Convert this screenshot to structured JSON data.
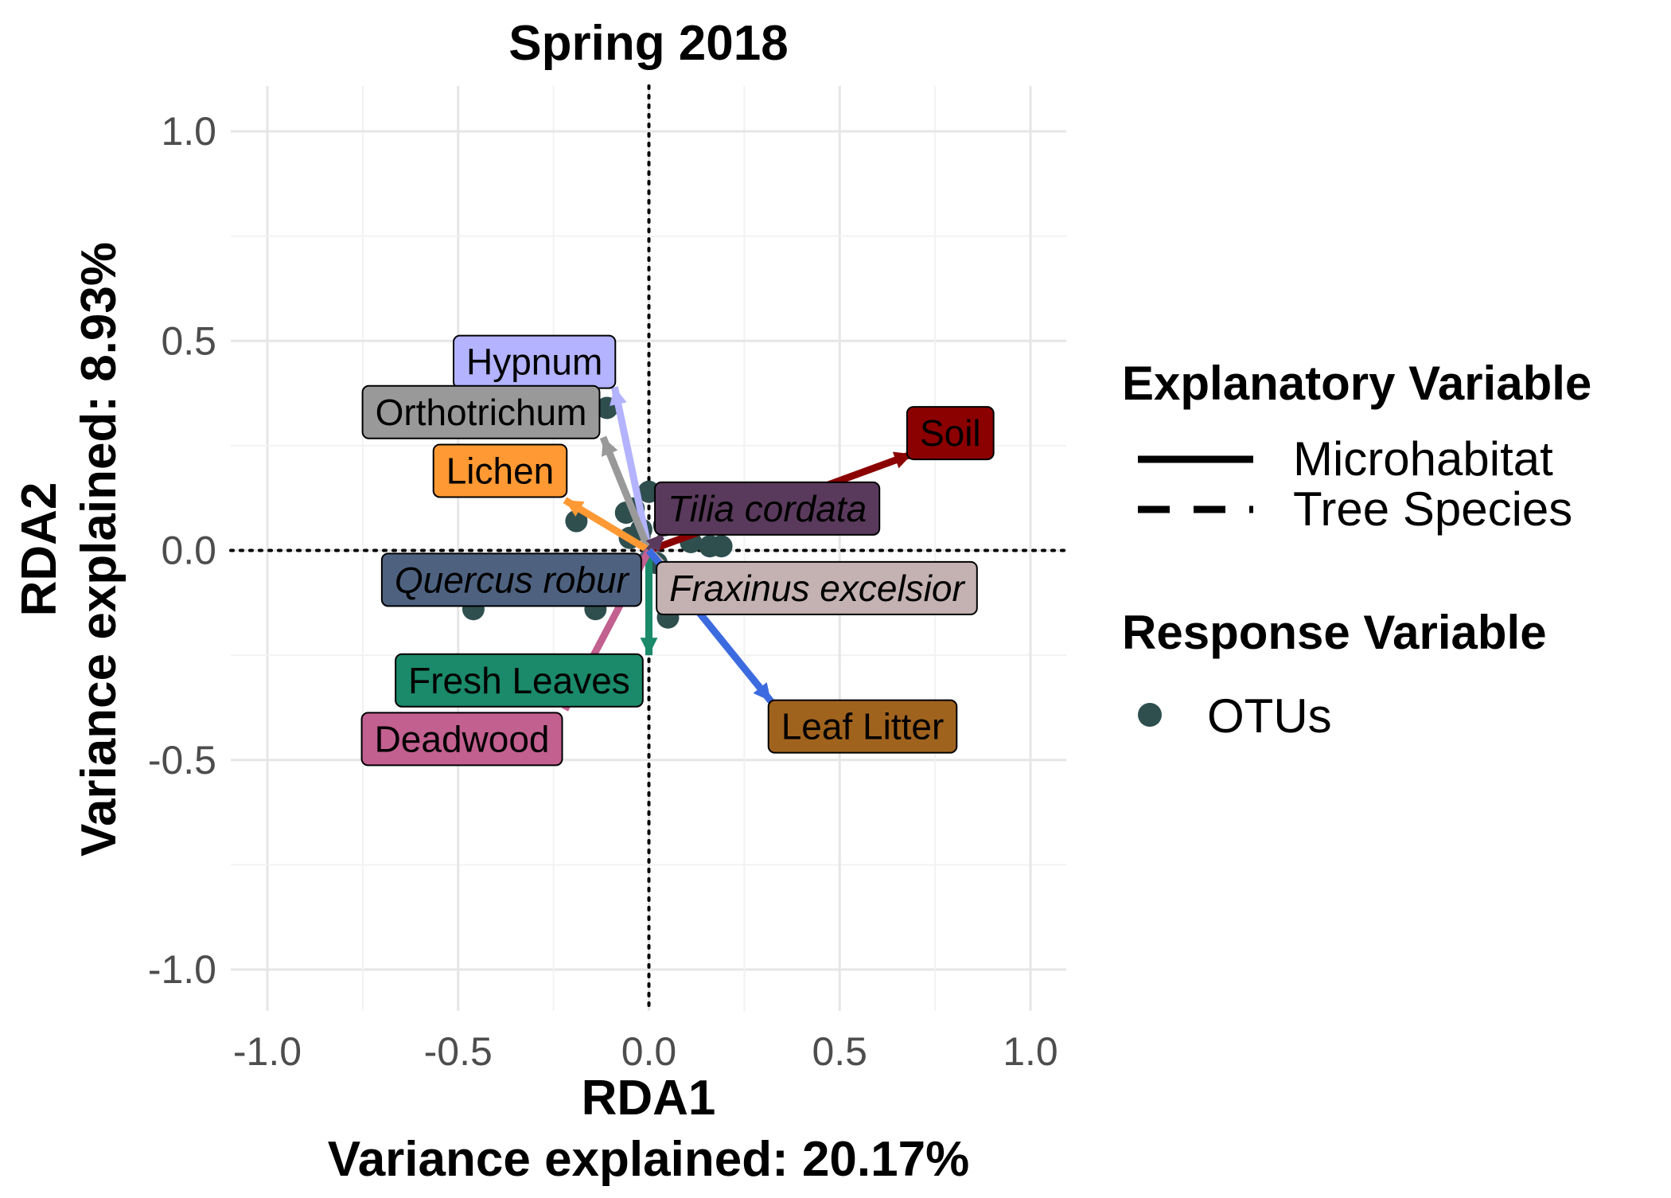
{
  "chart_data": {
    "type": "scatter",
    "title": "Spring 2018",
    "xlabel": "RDA1",
    "xlabel_sub": "Variance explained: 20.17%",
    "ylabel": "RDA2",
    "ylabel_sub": "Variance explained: 8.93%",
    "xlim": [
      -1.1,
      1.1
    ],
    "ylim": [
      -1.1,
      1.1
    ],
    "x_ticks": [
      -1.0,
      -0.5,
      0.0,
      0.5,
      1.0
    ],
    "y_ticks": [
      -1.0,
      -0.5,
      0.0,
      0.5,
      1.0
    ],
    "x_tick_labels": [
      "-1.0",
      "-0.5",
      "0.0",
      "0.5",
      "1.0"
    ],
    "y_tick_labels": [
      "-1.0",
      "-0.5",
      "0.0",
      "0.5",
      "1.0"
    ],
    "grid": true,
    "reference_lines": {
      "x": 0,
      "y": 0,
      "style": "dotted"
    },
    "legend": {
      "position": "right",
      "explanatory_title": "Explanatory Variable",
      "explanatory_items": [
        {
          "label": "Microhabitat",
          "linetype": "solid"
        },
        {
          "label": "Tree Species",
          "linetype": "dashed"
        }
      ],
      "response_title": "Response Variable",
      "response_items": [
        {
          "label": "OTUs",
          "color": "#2f4f4f"
        }
      ]
    },
    "arrows": [
      {
        "label": "Soil",
        "x": 0.69,
        "y": 0.23,
        "type": "Microhabitat",
        "color": "#8b0000",
        "text_color": "#000000",
        "label_x": 0.79,
        "label_y": 0.28
      },
      {
        "label": "Hypnum",
        "x": -0.09,
        "y": 0.39,
        "type": "Microhabitat",
        "color": "#b3b3ff",
        "text_color": "#000000",
        "label_x": -0.3,
        "label_y": 0.45
      },
      {
        "label": "Orthotrichum",
        "x": -0.12,
        "y": 0.27,
        "type": "Microhabitat",
        "color": "#999999",
        "text_color": "#000000",
        "label_x": -0.44,
        "label_y": 0.33
      },
      {
        "label": "Lichen",
        "x": -0.22,
        "y": 0.12,
        "type": "Microhabitat",
        "color": "#ff9933",
        "text_color": "#000000",
        "label_x": -0.39,
        "label_y": 0.19
      },
      {
        "label": "Tilia cordata",
        "x": 0.04,
        "y": 0.04,
        "type": "Tree Species",
        "color": "#5a3a5c",
        "text_color": "#000000",
        "label_x": 0.31,
        "label_y": 0.1
      },
      {
        "label": "Quercus robur",
        "x": -0.13,
        "y": -0.11,
        "type": "Tree Species",
        "color": "#4e6280",
        "text_color": "#000000",
        "label_x": -0.36,
        "label_y": -0.07
      },
      {
        "label": "Fraxinus excelsior",
        "x": 0.13,
        "y": -0.12,
        "type": "Tree Species",
        "color": "#c4b2b2",
        "text_color": "#000000",
        "label_x": 0.44,
        "label_y": -0.09
      },
      {
        "label": "Fresh Leaves",
        "x": 0.0,
        "y": -0.25,
        "type": "Microhabitat",
        "color": "#1a8a6a",
        "text_color": "#000000",
        "label_x": -0.34,
        "label_y": -0.31
      },
      {
        "label": "Deadwood",
        "x": -0.22,
        "y": -0.38,
        "type": "Microhabitat",
        "color": "#c26090",
        "text_color": "#000000",
        "label_x": -0.49,
        "label_y": -0.45
      },
      {
        "label": "Leaf Litter",
        "x": 0.32,
        "y": -0.36,
        "type": "Microhabitat",
        "color": "#3c6be0",
        "text_color": "#000000",
        "label_x": 0.56,
        "label_y": -0.42,
        "label_fill": "#a0631e"
      }
    ],
    "points": [
      {
        "x": -0.11,
        "y": 0.34
      },
      {
        "x": -0.19,
        "y": 0.07
      },
      {
        "x": -0.06,
        "y": 0.09
      },
      {
        "x": -0.04,
        "y": 0.1
      },
      {
        "x": -0.02,
        "y": 0.05
      },
      {
        "x": 0.0,
        "y": 0.14
      },
      {
        "x": 0.04,
        "y": 0.06
      },
      {
        "x": -0.05,
        "y": 0.03
      },
      {
        "x": 0.11,
        "y": 0.02
      },
      {
        "x": 0.16,
        "y": 0.01
      },
      {
        "x": 0.19,
        "y": 0.01
      },
      {
        "x": 0.02,
        "y": -0.03
      },
      {
        "x": -0.46,
        "y": -0.14
      },
      {
        "x": -0.14,
        "y": -0.14
      },
      {
        "x": 0.05,
        "y": -0.16
      },
      {
        "x": -0.06,
        "y": -0.05
      },
      {
        "x": 0.08,
        "y": -0.06
      }
    ]
  }
}
